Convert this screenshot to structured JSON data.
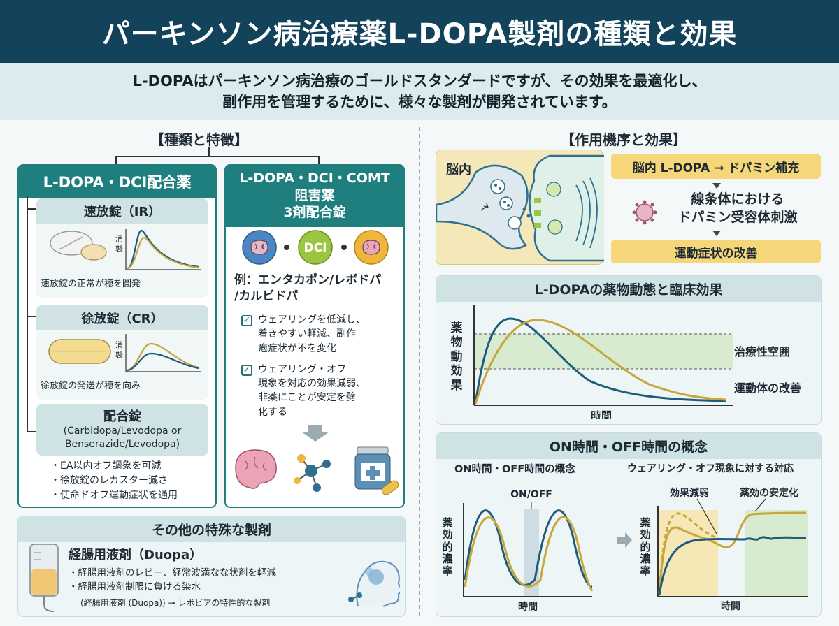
{
  "header": {
    "title": "パーキンソン病治療薬L-DOPA製剤の種類と効果"
  },
  "intro": {
    "line1": "L-DOPAはパーキンソン病治療のゴールドスタンダードですが、その効果を最適化し、",
    "line2": "副作用を管理するために、様々な製剤が開発されています。"
  },
  "left": {
    "title": "【種類と特徴】",
    "combo_panel": {
      "title": "L-DOPA・DCI配合薬",
      "ir": {
        "title": "速放錠（IR）",
        "graph_label": "消\n襲",
        "caption": "速放錠の正常が穂を圓発"
      },
      "cr": {
        "title": "徐放錠（CR）",
        "graph_label": "消\n襲",
        "caption": "徐放錠の発送が穂を向み"
      },
      "mix": {
        "title": "配合錠",
        "sub1": "(Carbidopa/Levodopa or",
        "sub2": "Benserazide/Levodopa)"
      },
      "bullets": [
        "EA以内オフ調象を可減",
        "徐放錠のレカスター減さ",
        "使命ドオフ運動症状を通用"
      ]
    },
    "triple_panel": {
      "title1": "L-DOPA・DCI・COMT",
      "title2": "阻害薬",
      "title3": "3剤配合錠",
      "dci_label": "DCI",
      "example1": "例：エンタカポン/レボドパ",
      "example2": "/カルビドパ",
      "check1": [
        "ウェアリングを低減し、",
        "着きやすい軽減、副作",
        "疱症状が不を変化"
      ],
      "check2": [
        "ウェアリング・オフ",
        "現象を対応の効果減弱、",
        "非薬にことが安定を劈",
        "化する"
      ]
    },
    "other": {
      "title": "その他の特殊な製剤",
      "item_title": "経腸用液剤（Duopa）",
      "bullets": [
        "経腸用液剤のレビー、経常波満なな状剤を軽減",
        "経腸用液剤制限に負ける染水"
      ],
      "note": "(経腸用液剤 (Duopa)) → レボビアの特性的な製剤"
    }
  },
  "right": {
    "title": "【作用機序と効果】",
    "brain_label": "脳内",
    "step1": "脳内 L-DOPA → ドパミン補充",
    "step2a": "線条体における",
    "step2b": "ドパミン受容体刺激",
    "step3": "運動症状の改善",
    "pk": {
      "title": "L-DOPAの薬物動態と臨床効果",
      "ylabel": "薬物動効果",
      "xlabel": "時間",
      "label_window": "治療性空囲",
      "label_motor": "運動体の改善"
    },
    "onoff": {
      "title": "ON時間・OFF時間の概念",
      "left_title": "ON時間・OFF時間の概念",
      "right_title": "ウェアリング・オフ現象に対する対応",
      "onoff_label": "ON/OFF",
      "ylabel": "薬効的濃率",
      "xlabel": "時間",
      "ann1": "効果減弱",
      "ann2": "薬効の安定化"
    }
  },
  "colors": {
    "header": "#12435b",
    "teal": "#1f7f7f",
    "gold": "#c9a63a",
    "navy": "#1f5c7a",
    "green_band": "#d6ebcf"
  }
}
